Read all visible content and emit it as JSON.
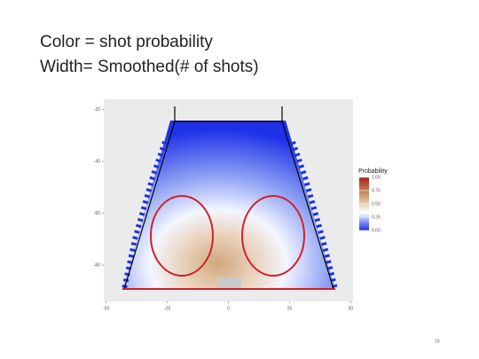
{
  "slide": {
    "title_lines": [
      "Color = shot probability",
      "Width= Smoothed(# of shots)"
    ],
    "page_number": "19"
  },
  "chart_data": {
    "type": "heatmap",
    "xlim": [
      -51,
      51
    ],
    "xticks": [
      -50,
      -25,
      0,
      25,
      50
    ],
    "ylim": [
      -94,
      -16
    ],
    "yticks": [
      -20,
      -40,
      -60,
      -80
    ],
    "legend": {
      "title": "Probability",
      "ticks": [
        {
          "value": 1,
          "label": "1.00"
        },
        {
          "value": 0.75,
          "label": "0.75"
        },
        {
          "value": 0.5,
          "label": "0.50"
        },
        {
          "value": 0.25,
          "label": "0.25"
        },
        {
          "value": 0,
          "label": "0.00"
        }
      ],
      "colors": [
        "#1a2cf0",
        "#ffffff",
        "#c99b6a",
        "#a8201a"
      ]
    }
  }
}
